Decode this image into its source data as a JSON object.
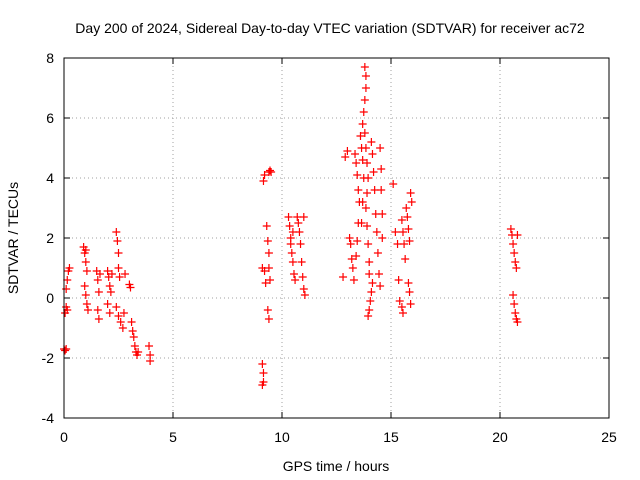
{
  "chart_data": {
    "type": "scatter",
    "title": "Day 200 of 2024, Sidereal Day-to-day VTEC variation (SDTVAR) for receiver ac72",
    "xlabel": "GPS time / hours",
    "ylabel": "SDTVAR / TECUs",
    "xlim": [
      0,
      25
    ],
    "ylim": [
      -4,
      8
    ],
    "xticks": [
      0,
      5,
      10,
      15,
      20,
      25
    ],
    "yticks": [
      -4,
      -2,
      0,
      2,
      4,
      6,
      8
    ],
    "xtick_labels": [
      "0",
      "5",
      "10",
      "15",
      "20",
      "25"
    ],
    "ytick_labels": [
      "-4",
      "-2",
      "0",
      "2",
      "4",
      "6",
      "8"
    ],
    "grid": true,
    "marker": "+",
    "color": "#ff0000",
    "series": [
      {
        "name": "SDTVAR",
        "points": [
          [
            0.0,
            -1.7
          ],
          [
            0.05,
            -1.75
          ],
          [
            0.1,
            -1.7
          ],
          [
            0.05,
            -0.5
          ],
          [
            0.1,
            -0.3
          ],
          [
            0.1,
            0.3
          ],
          [
            0.15,
            0.6
          ],
          [
            0.2,
            0.9
          ],
          [
            0.25,
            1.0
          ],
          [
            0.15,
            -0.4
          ],
          [
            0.9,
            1.7
          ],
          [
            0.95,
            1.5
          ],
          [
            1.0,
            1.2
          ],
          [
            1.05,
            0.9
          ],
          [
            0.95,
            0.4
          ],
          [
            1.0,
            0.1
          ],
          [
            1.05,
            -0.2
          ],
          [
            1.1,
            -0.4
          ],
          [
            1.0,
            1.6
          ],
          [
            1.5,
            0.9
          ],
          [
            1.55,
            0.6
          ],
          [
            1.6,
            0.2
          ],
          [
            1.55,
            -0.4
          ],
          [
            1.6,
            -0.7
          ],
          [
            1.65,
            0.8
          ],
          [
            2.0,
            0.9
          ],
          [
            2.05,
            0.7
          ],
          [
            2.1,
            0.4
          ],
          [
            2.15,
            0.2
          ],
          [
            2.0,
            -0.2
          ],
          [
            2.1,
            -0.5
          ],
          [
            2.2,
            0.8
          ],
          [
            2.4,
            2.2
          ],
          [
            2.45,
            1.9
          ],
          [
            2.5,
            1.5
          ],
          [
            2.5,
            1.0
          ],
          [
            2.55,
            0.7
          ],
          [
            2.4,
            -0.3
          ],
          [
            2.5,
            -0.6
          ],
          [
            2.6,
            -0.8
          ],
          [
            2.7,
            -1.0
          ],
          [
            2.75,
            -0.5
          ],
          [
            2.8,
            0.8
          ],
          [
            3.0,
            0.45
          ],
          [
            3.05,
            0.35
          ],
          [
            3.1,
            -0.8
          ],
          [
            3.15,
            -1.1
          ],
          [
            3.2,
            -1.3
          ],
          [
            3.25,
            -1.6
          ],
          [
            3.3,
            -1.8
          ],
          [
            3.35,
            -1.9
          ],
          [
            3.4,
            -1.8
          ],
          [
            3.9,
            -1.6
          ],
          [
            3.95,
            -1.9
          ],
          [
            3.95,
            -2.1
          ],
          [
            9.1,
            -2.2
          ],
          [
            9.15,
            -2.5
          ],
          [
            9.15,
            -2.8
          ],
          [
            9.1,
            -2.9
          ],
          [
            9.15,
            3.9
          ],
          [
            9.2,
            4.1
          ],
          [
            9.1,
            1.0
          ],
          [
            9.2,
            0.9
          ],
          [
            9.25,
            0.5
          ],
          [
            9.4,
            4.2
          ],
          [
            9.45,
            4.25
          ],
          [
            9.5,
            4.2
          ],
          [
            9.3,
            2.4
          ],
          [
            9.35,
            1.9
          ],
          [
            9.4,
            1.5
          ],
          [
            9.4,
            1.0
          ],
          [
            9.45,
            0.6
          ],
          [
            9.35,
            -0.4
          ],
          [
            9.4,
            -0.7
          ],
          [
            10.3,
            2.7
          ],
          [
            10.35,
            2.4
          ],
          [
            10.4,
            2.0
          ],
          [
            10.45,
            1.5
          ],
          [
            10.5,
            1.2
          ],
          [
            10.55,
            0.8
          ],
          [
            10.6,
            0.6
          ],
          [
            10.5,
            2.2
          ],
          [
            10.4,
            1.8
          ],
          [
            10.7,
            2.7
          ],
          [
            10.75,
            2.5
          ],
          [
            10.8,
            2.2
          ],
          [
            10.85,
            1.8
          ],
          [
            10.9,
            1.2
          ],
          [
            10.95,
            0.7
          ],
          [
            11.0,
            0.3
          ],
          [
            11.05,
            0.1
          ],
          [
            11.0,
            2.7
          ],
          [
            12.8,
            0.7
          ],
          [
            12.9,
            4.7
          ],
          [
            13.0,
            4.9
          ],
          [
            13.1,
            2.0
          ],
          [
            13.15,
            1.8
          ],
          [
            13.2,
            1.3
          ],
          [
            13.25,
            1.0
          ],
          [
            13.3,
            0.6
          ],
          [
            13.35,
            4.8
          ],
          [
            13.4,
            4.5
          ],
          [
            13.45,
            4.1
          ],
          [
            13.5,
            3.6
          ],
          [
            13.55,
            3.2
          ],
          [
            13.5,
            2.5
          ],
          [
            13.45,
            1.9
          ],
          [
            13.4,
            1.4
          ],
          [
            13.6,
            5.4
          ],
          [
            13.65,
            5.0
          ],
          [
            13.7,
            4.6
          ],
          [
            13.75,
            4.0
          ],
          [
            13.7,
            3.2
          ],
          [
            13.65,
            2.5
          ],
          [
            13.8,
            7.7
          ],
          [
            13.85,
            7.4
          ],
          [
            13.85,
            7.0
          ],
          [
            13.8,
            6.6
          ],
          [
            13.75,
            6.2
          ],
          [
            13.7,
            5.8
          ],
          [
            13.8,
            5.5
          ],
          [
            13.85,
            5.0
          ],
          [
            13.9,
            4.5
          ],
          [
            13.95,
            4.0
          ],
          [
            13.9,
            3.5
          ],
          [
            13.85,
            3.0
          ],
          [
            13.9,
            2.4
          ],
          [
            13.95,
            1.8
          ],
          [
            14.0,
            1.2
          ],
          [
            14.0,
            0.8
          ],
          [
            13.95,
            -0.6
          ],
          [
            14.0,
            -0.4
          ],
          [
            14.05,
            -0.1
          ],
          [
            14.1,
            0.2
          ],
          [
            14.15,
            0.5
          ],
          [
            14.1,
            5.2
          ],
          [
            14.15,
            4.8
          ],
          [
            14.2,
            4.2
          ],
          [
            14.25,
            3.6
          ],
          [
            14.3,
            2.8
          ],
          [
            14.35,
            2.2
          ],
          [
            14.4,
            1.5
          ],
          [
            14.45,
            0.8
          ],
          [
            14.5,
            0.4
          ],
          [
            14.5,
            5.0
          ],
          [
            14.55,
            4.3
          ],
          [
            14.55,
            3.6
          ],
          [
            14.6,
            2.8
          ],
          [
            14.6,
            2.0
          ],
          [
            15.1,
            3.8
          ],
          [
            15.2,
            2.2
          ],
          [
            15.3,
            1.8
          ],
          [
            15.35,
            0.6
          ],
          [
            15.4,
            -0.1
          ],
          [
            15.5,
            2.6
          ],
          [
            15.55,
            2.2
          ],
          [
            15.6,
            1.8
          ],
          [
            15.65,
            1.3
          ],
          [
            15.5,
            -0.3
          ],
          [
            15.55,
            -0.5
          ],
          [
            15.7,
            3.0
          ],
          [
            15.75,
            2.7
          ],
          [
            15.8,
            2.3
          ],
          [
            15.85,
            1.9
          ],
          [
            15.8,
            0.5
          ],
          [
            15.85,
            0.2
          ],
          [
            15.9,
            -0.2
          ],
          [
            15.9,
            3.5
          ],
          [
            15.95,
            3.2
          ],
          [
            20.5,
            2.3
          ],
          [
            20.55,
            2.1
          ],
          [
            20.6,
            1.8
          ],
          [
            20.65,
            1.5
          ],
          [
            20.7,
            1.2
          ],
          [
            20.75,
            1.0
          ],
          [
            20.8,
            2.1
          ],
          [
            20.6,
            0.1
          ],
          [
            20.65,
            -0.2
          ],
          [
            20.7,
            -0.5
          ],
          [
            20.75,
            -0.7
          ],
          [
            20.8,
            -0.8
          ]
        ]
      }
    ]
  }
}
